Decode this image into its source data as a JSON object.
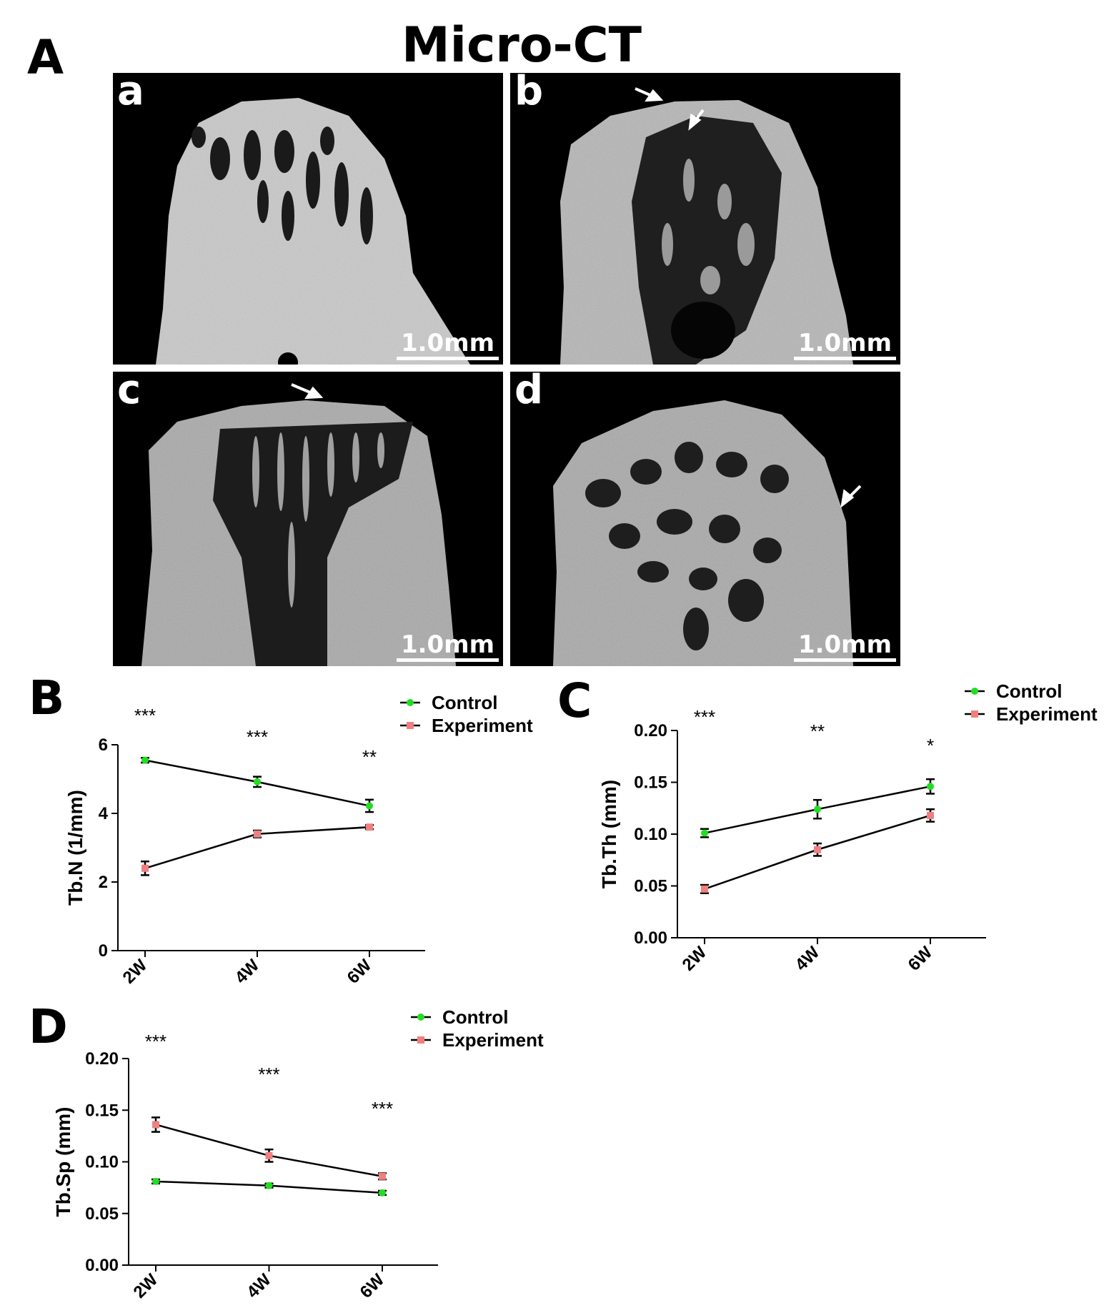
{
  "panel_a": {
    "letter": "A",
    "title": "Micro-CT",
    "images": [
      {
        "letter": "a",
        "scale": "1.0mm"
      },
      {
        "letter": "b",
        "scale": "1.0mm"
      },
      {
        "letter": "c",
        "scale": "1.0mm"
      },
      {
        "letter": "d",
        "scale": "1.0mm"
      }
    ]
  },
  "colors": {
    "control": "#22dd22",
    "experiment": "#f08080",
    "line": "#000000"
  },
  "chart_data": [
    {
      "panel": "B",
      "type": "line",
      "categories": [
        "2W",
        "4W",
        "6W"
      ],
      "ylabel": "Tb.N (1/mm)",
      "ylim": [
        0,
        6
      ],
      "yticks": [
        "0",
        "2",
        "4",
        "6"
      ],
      "grid": false,
      "legend": "top-right",
      "series": [
        {
          "name": "Control",
          "values": [
            5.55,
            4.92,
            4.22
          ],
          "errors": [
            0.07,
            0.15,
            0.18
          ]
        },
        {
          "name": "Experiment",
          "values": [
            2.4,
            3.4,
            3.6
          ],
          "errors": [
            0.2,
            0.1,
            0.06
          ]
        }
      ],
      "significance": [
        "***",
        "***",
        "**"
      ]
    },
    {
      "panel": "C",
      "type": "line",
      "categories": [
        "2W",
        "4W",
        "6W"
      ],
      "ylabel": "Tb.Th (mm)",
      "ylim": [
        0,
        0.2
      ],
      "yticks": [
        "0.00",
        "0.05",
        "0.10",
        "0.15",
        "0.20"
      ],
      "grid": false,
      "legend": "top-right",
      "series": [
        {
          "name": "Control",
          "values": [
            0.101,
            0.124,
            0.146
          ],
          "errors": [
            0.004,
            0.009,
            0.007
          ]
        },
        {
          "name": "Experiment",
          "values": [
            0.047,
            0.085,
            0.118
          ],
          "errors": [
            0.004,
            0.006,
            0.006
          ]
        }
      ],
      "significance": [
        "***",
        "**",
        "*"
      ]
    },
    {
      "panel": "D",
      "type": "line",
      "categories": [
        "2W",
        "4W",
        "6W"
      ],
      "ylabel": "Tb.Sp (mm)",
      "ylim": [
        0,
        0.2
      ],
      "yticks": [
        "0.00",
        "0.05",
        "0.10",
        "0.15",
        "0.20"
      ],
      "grid": false,
      "legend": "top-right",
      "series": [
        {
          "name": "Control",
          "values": [
            0.081,
            0.077,
            0.07
          ],
          "errors": [
            0.002,
            0.002,
            0.002
          ]
        },
        {
          "name": "Experiment",
          "values": [
            0.136,
            0.106,
            0.086
          ],
          "errors": [
            0.007,
            0.006,
            0.003
          ]
        }
      ],
      "significance": [
        "***",
        "***",
        "***"
      ]
    }
  ]
}
